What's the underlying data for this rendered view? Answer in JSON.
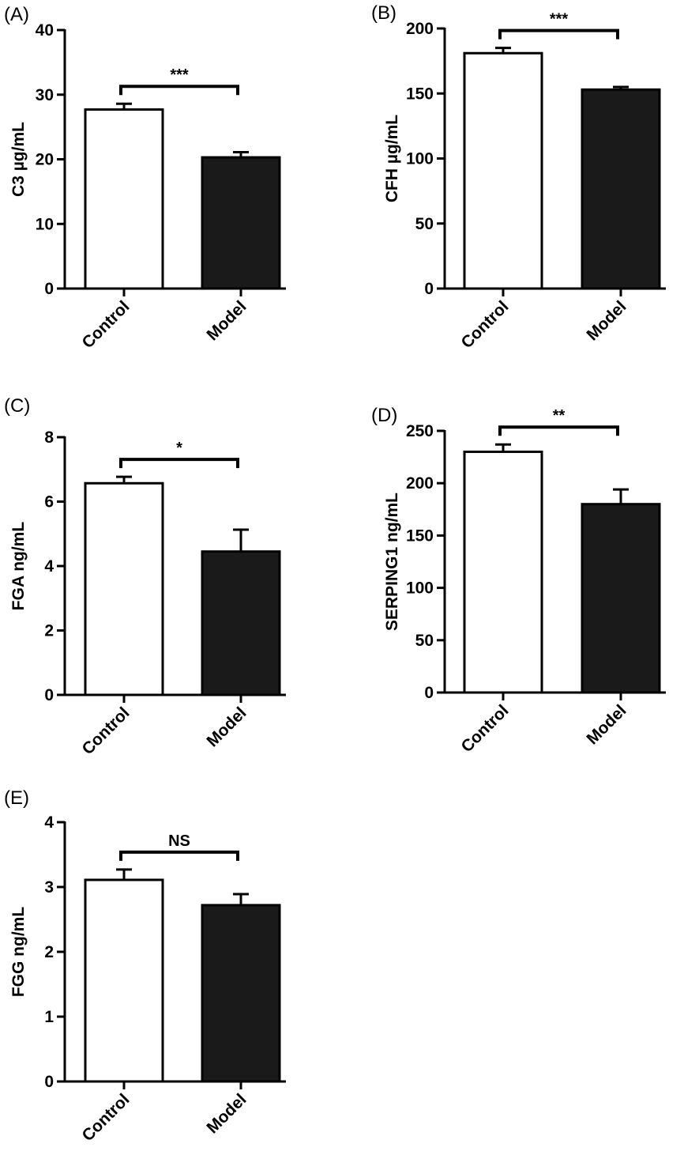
{
  "chart_data": [
    {
      "panel": "(A)",
      "type": "bar",
      "categories": [
        "Control",
        "Model"
      ],
      "values": [
        27.7,
        20.3
      ],
      "errors": [
        0.9,
        0.8
      ],
      "bar_fills": [
        "#ffffff",
        "#1a1a1a"
      ],
      "ylabel": "C3 µg/mL",
      "ylim": [
        0,
        40
      ],
      "yticks": [
        "0",
        "10",
        "20",
        "30",
        "40"
      ],
      "significance": "***"
    },
    {
      "panel": "(B)",
      "type": "bar",
      "categories": [
        "Control",
        "Model"
      ],
      "values": [
        181,
        153
      ],
      "errors": [
        4,
        2
      ],
      "bar_fills": [
        "#ffffff",
        "#1a1a1a"
      ],
      "ylabel": "CFH µg/mL",
      "ylim": [
        0,
        200
      ],
      "yticks": [
        "0",
        "50",
        "100",
        "150",
        "200"
      ],
      "significance": "***"
    },
    {
      "panel": "(C)",
      "type": "bar",
      "categories": [
        "Control",
        "Model"
      ],
      "values": [
        6.57,
        4.45
      ],
      "errors": [
        0.2,
        0.68
      ],
      "bar_fills": [
        "#ffffff",
        "#1a1a1a"
      ],
      "ylabel": "FGA ng/mL",
      "ylim": [
        0,
        8
      ],
      "yticks": [
        "0",
        "2",
        "4",
        "6",
        "8"
      ],
      "significance": "*"
    },
    {
      "panel": "(D)",
      "type": "bar",
      "categories": [
        "Control",
        "Model"
      ],
      "values": [
        230,
        180
      ],
      "errors": [
        7,
        14
      ],
      "bar_fills": [
        "#ffffff",
        "#1a1a1a"
      ],
      "ylabel": "SERPING1 ng/mL",
      "ylim": [
        0,
        250
      ],
      "yticks": [
        "0",
        "50",
        "100",
        "150",
        "200",
        "250"
      ],
      "significance": "**"
    },
    {
      "panel": "(E)",
      "type": "bar",
      "categories": [
        "Control",
        "Model"
      ],
      "values": [
        3.11,
        2.72
      ],
      "errors": [
        0.16,
        0.17
      ],
      "bar_fills": [
        "#ffffff",
        "#1a1a1a"
      ],
      "ylabel": "FGG ng/mL",
      "ylim": [
        0,
        4
      ],
      "yticks": [
        "0",
        "1",
        "2",
        "3",
        "4"
      ],
      "significance": "NS"
    }
  ]
}
